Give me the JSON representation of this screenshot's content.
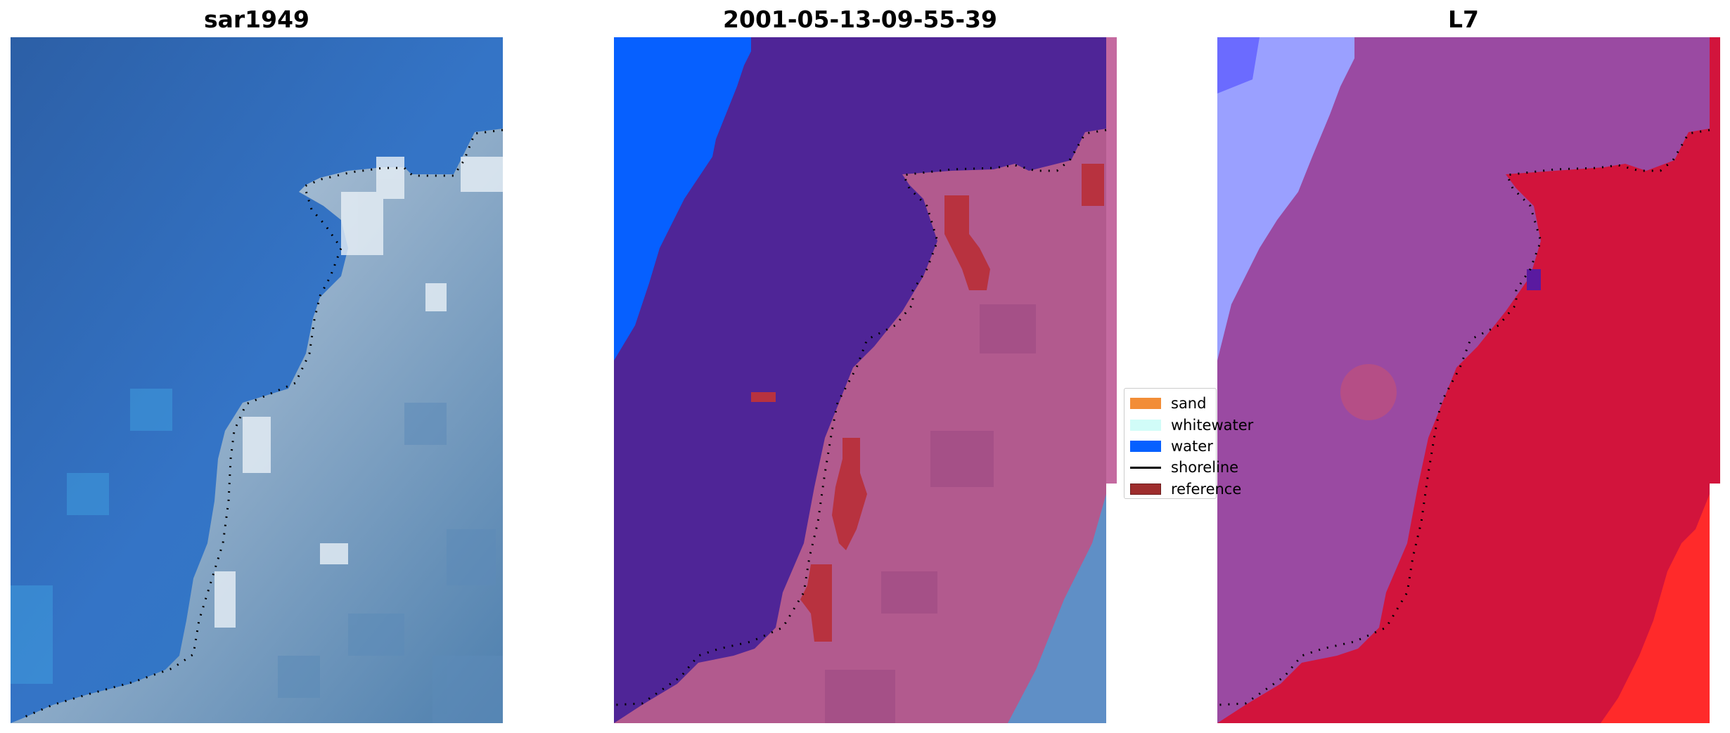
{
  "panels": [
    {
      "title": "sar1949"
    },
    {
      "title": "2001-05-13-09-55-39"
    },
    {
      "title": "L7"
    }
  ],
  "legend": {
    "items": [
      {
        "label": "sand",
        "color": "#f28d37"
      },
      {
        "label": "whitewater",
        "color": "#d1fcf8"
      },
      {
        "label": "water",
        "color": "#0660ff"
      },
      {
        "label": "shoreline",
        "color": "#000000"
      },
      {
        "label": "reference",
        "color": "#9e2d2d"
      }
    ]
  },
  "colors": {
    "water_blue": "#2e6fc0",
    "surf_white": "#d9e6f0",
    "water_class": "#0660ff",
    "land_purple": "#4f2597",
    "land_pink": "#b25a8e",
    "reference_red": "#b8323f",
    "nir_red": "#d2143c",
    "nir_lightblue": "#9aa0ff"
  }
}
